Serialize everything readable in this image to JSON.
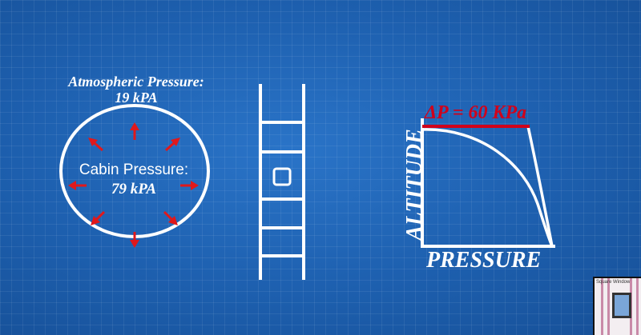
{
  "cabin": {
    "atmospheric_label": "Atmospheric Pressure:",
    "atmospheric_value": "19  kPA",
    "cabin_label": "Cabin Pressure:",
    "cabin_value": "79  kPA"
  },
  "graph": {
    "delta_label": "ΔP = 60 KPa",
    "x_axis_label": "PRESSURE",
    "y_axis_label": "ALTITUDE"
  },
  "colors": {
    "background": "#1f63b4",
    "lines": "#ffffff",
    "accent": "#d0021b"
  },
  "pip_thumbnail": {
    "caption": "Square Window"
  }
}
